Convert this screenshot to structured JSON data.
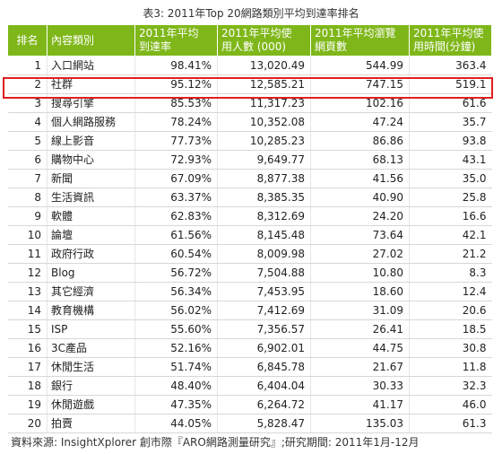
{
  "title": "表3: 2011年Top 20網路類別平均到達率排名",
  "headers": {
    "rank": "排名",
    "category": "內容類別",
    "reach": [
      "2011年平均",
      "到達率"
    ],
    "users": [
      "2011年平均使",
      "用人數 (000)"
    ],
    "pageviews": [
      "2011年平均瀏覽",
      "網頁數"
    ],
    "minutes": [
      "2011年平均使",
      "用時間(分鐘)"
    ]
  },
  "rows": [
    {
      "rank": "1",
      "category": "入口網站",
      "reach": "98.41%",
      "users": "13,020.49",
      "pageviews": "544.99",
      "minutes": "363.4"
    },
    {
      "rank": "2",
      "category": "社群",
      "reach": "95.12%",
      "users": "12,585.21",
      "pageviews": "747.15",
      "minutes": "519.1"
    },
    {
      "rank": "3",
      "category": "搜尋引擎",
      "reach": "85.53%",
      "users": "11,317.23",
      "pageviews": "102.16",
      "minutes": "61.6"
    },
    {
      "rank": "4",
      "category": "個人網路服務",
      "reach": "78.24%",
      "users": "10,352.08",
      "pageviews": "47.24",
      "minutes": "35.7"
    },
    {
      "rank": "5",
      "category": "線上影音",
      "reach": "77.73%",
      "users": "10,285.23",
      "pageviews": "86.86",
      "minutes": "93.8"
    },
    {
      "rank": "6",
      "category": "購物中心",
      "reach": "72.93%",
      "users": "9,649.77",
      "pageviews": "68.13",
      "minutes": "43.1"
    },
    {
      "rank": "7",
      "category": "新聞",
      "reach": "67.09%",
      "users": "8,877.38",
      "pageviews": "41.56",
      "minutes": "35.0"
    },
    {
      "rank": "8",
      "category": "生活資訊",
      "reach": "63.37%",
      "users": "8,385.35",
      "pageviews": "40.90",
      "minutes": "25.8"
    },
    {
      "rank": "9",
      "category": "軟體",
      "reach": "62.83%",
      "users": "8,312.69",
      "pageviews": "24.20",
      "minutes": "16.6"
    },
    {
      "rank": "10",
      "category": "論壇",
      "reach": "61.56%",
      "users": "8,145.48",
      "pageviews": "73.64",
      "minutes": "42.1"
    },
    {
      "rank": "11",
      "category": "政府行政",
      "reach": "60.54%",
      "users": "8,009.98",
      "pageviews": "27.02",
      "minutes": "21.2"
    },
    {
      "rank": "12",
      "category": "Blog",
      "reach": "56.72%",
      "users": "7,504.88",
      "pageviews": "10.80",
      "minutes": "8.3"
    },
    {
      "rank": "13",
      "category": "其它經濟",
      "reach": "56.34%",
      "users": "7,453.95",
      "pageviews": "18.60",
      "minutes": "12.4"
    },
    {
      "rank": "14",
      "category": "教育機構",
      "reach": "56.02%",
      "users": "7,412.69",
      "pageviews": "31.09",
      "minutes": "20.6"
    },
    {
      "rank": "15",
      "category": "ISP",
      "reach": "55.60%",
      "users": "7,356.57",
      "pageviews": "26.41",
      "minutes": "18.5"
    },
    {
      "rank": "16",
      "category": "3C產品",
      "reach": "52.16%",
      "users": "6,902.01",
      "pageviews": "44.75",
      "minutes": "30.8"
    },
    {
      "rank": "17",
      "category": "休閒生活",
      "reach": "51.74%",
      "users": "6,845.78",
      "pageviews": "21.67",
      "minutes": "11.8"
    },
    {
      "rank": "18",
      "category": "銀行",
      "reach": "48.40%",
      "users": "6,404.04",
      "pageviews": "30.33",
      "minutes": "32.3"
    },
    {
      "rank": "19",
      "category": "休閒遊戲",
      "reach": "47.35%",
      "users": "6,264.72",
      "pageviews": "41.17",
      "minutes": "46.0"
    },
    {
      "rank": "20",
      "category": "拍賣",
      "reach": "44.05%",
      "users": "5,828.47",
      "pageviews": "135.03",
      "minutes": "61.3"
    }
  ],
  "highlighted_rank": "2",
  "source": "資料來源: InsightXplorer 創市際『ARO網路測量研究』;研究期間: 2011年1月-12月",
  "colors": {
    "header_bg": "#7fb71a",
    "header_text": "#ffffff",
    "highlight_border": "#e02020"
  }
}
